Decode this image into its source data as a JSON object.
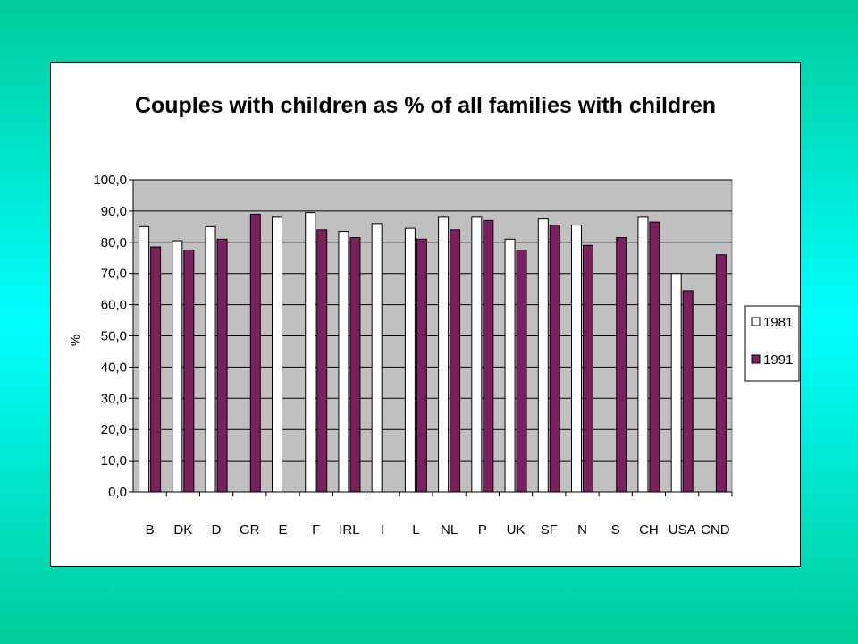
{
  "chart_data": {
    "type": "bar",
    "title": "Couples with children as % of all families with children",
    "xlabel": "",
    "ylabel": "%",
    "ylim": [
      0,
      100
    ],
    "ytick_step": 10,
    "ytick_labels": [
      "0,0",
      "10,0",
      "20,0",
      "30,0",
      "40,0",
      "50,0",
      "60,0",
      "70,0",
      "80,0",
      "90,0",
      "100,0"
    ],
    "grid": true,
    "legend_position": "right",
    "plot_background": "#c0c0c0",
    "categories": [
      "B",
      "DK",
      "D",
      "GR",
      "E",
      "F",
      "IRL",
      "I",
      "L",
      "NL",
      "P",
      "UK",
      "SF",
      "N",
      "S",
      "CH",
      "USA",
      "CND"
    ],
    "series": [
      {
        "name": "1981",
        "color": "#ffffff",
        "values": [
          85.0,
          80.5,
          85.0,
          null,
          88.0,
          89.5,
          83.5,
          86.0,
          84.5,
          88.0,
          88.0,
          81.0,
          87.5,
          85.5,
          null,
          88.0,
          70.0,
          null
        ]
      },
      {
        "name": "1991",
        "color": "#7b1f5e",
        "values": [
          78.5,
          77.5,
          81.0,
          89.0,
          null,
          84.0,
          81.5,
          null,
          81.0,
          84.0,
          87.0,
          77.5,
          85.5,
          79.0,
          81.5,
          86.5,
          64.5,
          76.0
        ]
      }
    ]
  }
}
